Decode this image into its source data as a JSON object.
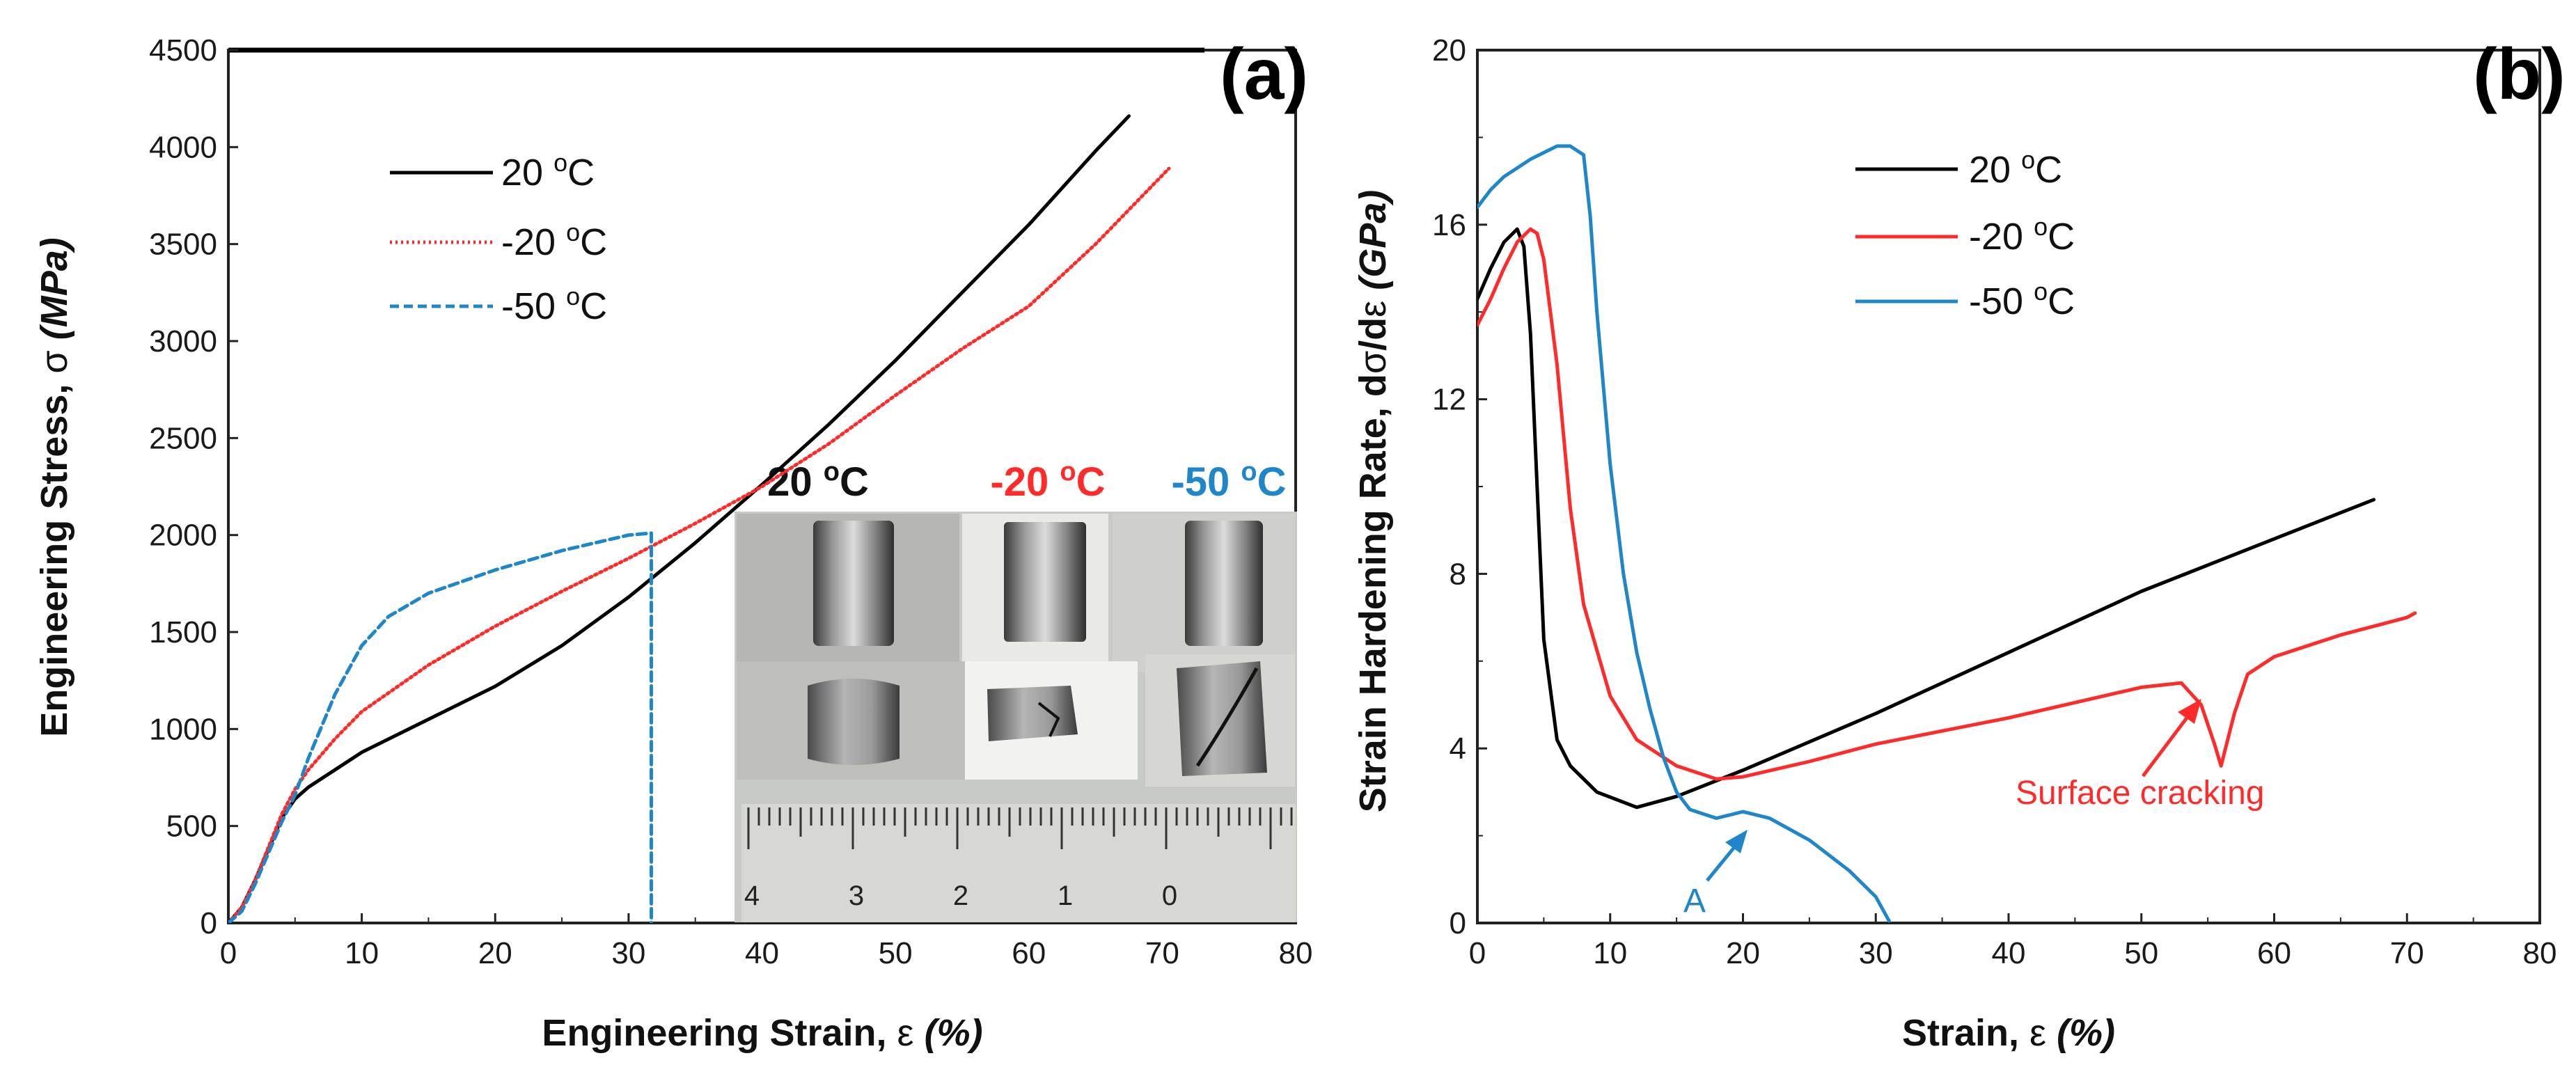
{
  "colors": {
    "black": "#000000",
    "red": "#ff2b2b",
    "blue": "#1f87c9",
    "axis": "#222222"
  },
  "chart_data": [
    {
      "type": "line",
      "panel_label": "(a)",
      "xlabel": "Engineering Strain, ε (%)",
      "ylabel": "Engineering Stress, σ (MPa)",
      "xlim": [
        0,
        80
      ],
      "ylim": [
        0,
        4500
      ],
      "xticks": [
        "0",
        "10",
        "20",
        "30",
        "40",
        "50",
        "60",
        "70",
        "80"
      ],
      "yticks": [
        "0",
        "500",
        "1000",
        "1500",
        "2000",
        "2500",
        "3000",
        "3500",
        "4000",
        "4500"
      ],
      "legend": [
        "20 °C",
        "-20 °C",
        "-50 °C"
      ],
      "series": [
        {
          "name": "20 °C",
          "style": "solid",
          "color": "#000000",
          "x": [
            0,
            1,
            2,
            3,
            4,
            5,
            6,
            8,
            10,
            15,
            20,
            25,
            30,
            35,
            40,
            45,
            50,
            55,
            60,
            65,
            67.5
          ],
          "y": [
            0,
            80,
            220,
            380,
            540,
            640,
            700,
            790,
            880,
            1050,
            1220,
            1430,
            1680,
            1960,
            2260,
            2570,
            2900,
            3250,
            3600,
            3980,
            4160
          ]
        },
        {
          "name": "-20 °C",
          "style": "dotted",
          "color": "#ff2b2b",
          "x": [
            0,
            1,
            2,
            3,
            4,
            5,
            6,
            8,
            10,
            15,
            20,
            25,
            30,
            35,
            40,
            45,
            50,
            55,
            60,
            65,
            70.5
          ],
          "y": [
            0,
            80,
            220,
            390,
            560,
            690,
            790,
            950,
            1090,
            1330,
            1530,
            1710,
            1880,
            2060,
            2250,
            2470,
            2720,
            2960,
            3180,
            3500,
            3890
          ]
        },
        {
          "name": "-50 °C",
          "style": "dashed",
          "color": "#1f87c9",
          "x": [
            0,
            1,
            2,
            3,
            4,
            5,
            6,
            8,
            10,
            12,
            15,
            20,
            25,
            30,
            31.7,
            31.7
          ],
          "y": [
            0,
            60,
            200,
            360,
            520,
            660,
            850,
            1180,
            1430,
            1580,
            1700,
            1820,
            1920,
            2000,
            2010,
            0
          ]
        }
      ],
      "inset": {
        "titles": [
          "20 °C",
          "-20 °C",
          "-50 °C"
        ],
        "ruler_numbers": [
          "4",
          "3",
          "2",
          "1",
          "0"
        ]
      }
    },
    {
      "type": "line",
      "panel_label": "(b)",
      "xlabel": "Strain, ε (%)",
      "ylabel": "Strain Hardening Rate, dσ/dε (GPa)",
      "xlim": [
        0,
        80
      ],
      "ylim": [
        0,
        20
      ],
      "xticks": [
        "0",
        "10",
        "20",
        "30",
        "40",
        "50",
        "60",
        "70",
        "80"
      ],
      "yticks": [
        "0",
        "4",
        "8",
        "12",
        "16",
        "20"
      ],
      "legend": [
        "20 °C",
        "-20 °C",
        "-50 °C"
      ],
      "series": [
        {
          "name": "20 °C",
          "style": "solid",
          "color": "#000000",
          "x": [
            0,
            1,
            2,
            3,
            3.5,
            4,
            4.5,
            5,
            6,
            7,
            9,
            12,
            15,
            20,
            30,
            40,
            50,
            60,
            67.5
          ],
          "y": [
            14.3,
            15.0,
            15.6,
            15.9,
            15.5,
            13.5,
            10,
            6.5,
            4.2,
            3.6,
            3.0,
            2.65,
            2.9,
            3.5,
            4.8,
            6.2,
            7.6,
            8.8,
            9.7
          ]
        },
        {
          "name": "-20 °C",
          "style": "solid",
          "color": "#ff2b2b",
          "x": [
            0,
            1,
            2,
            3,
            4,
            4.5,
            5,
            6,
            7,
            8,
            10,
            12,
            15,
            18,
            20,
            25,
            30,
            40,
            50,
            53,
            54.5,
            55.5,
            56,
            57,
            58,
            60,
            65,
            70,
            70.6
          ],
          "y": [
            13.7,
            14.3,
            15.0,
            15.6,
            15.9,
            15.8,
            15.2,
            12.8,
            9.5,
            7.3,
            5.2,
            4.2,
            3.6,
            3.3,
            3.35,
            3.7,
            4.1,
            4.7,
            5.4,
            5.5,
            5.0,
            4.1,
            3.6,
            4.8,
            5.7,
            6.1,
            6.6,
            7.0,
            7.1
          ]
        },
        {
          "name": "-50 °C",
          "style": "solid",
          "color": "#1f87c9",
          "x": [
            0,
            1,
            2,
            4,
            6,
            7,
            8,
            8.5,
            9,
            10,
            11,
            12,
            13,
            14,
            15,
            16,
            18,
            20,
            22,
            25,
            28,
            30,
            31
          ],
          "y": [
            16.4,
            16.8,
            17.1,
            17.5,
            17.8,
            17.8,
            17.6,
            16.2,
            14,
            10.5,
            8,
            6.2,
            4.9,
            3.8,
            3.0,
            2.6,
            2.4,
            2.55,
            2.4,
            1.9,
            1.2,
            0.6,
            0.05
          ]
        }
      ],
      "annotations": [
        {
          "text": "Surface cracking",
          "color": "#ff2b2b",
          "x": 54,
          "y": 5
        },
        {
          "text": "A",
          "color": "#1f87c9",
          "x": 20,
          "y": 2.2
        }
      ]
    }
  ]
}
